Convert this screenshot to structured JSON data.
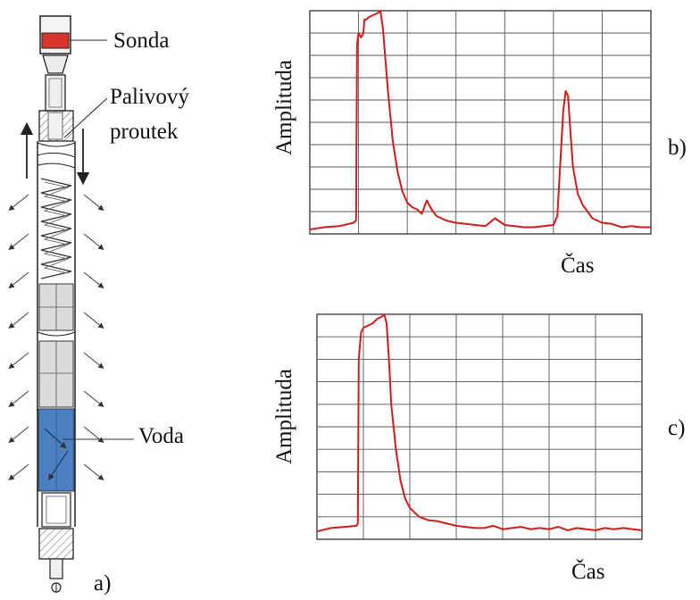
{
  "figure": {
    "panel_a_label": "a)",
    "panel_b_label": "b)",
    "panel_c_label": "c)"
  },
  "rod": {
    "labels": {
      "probe": "Sonda",
      "fuel_rod_line1": "Palivový",
      "fuel_rod_line2": "proutek",
      "water": "Voda"
    },
    "colors": {
      "probe": "#d9342b",
      "water": "#4a7fc0",
      "steel": "#e6e6e6"
    }
  },
  "chart_data": [
    {
      "type": "line",
      "panel": "b)",
      "ylabel": "Amplituda",
      "xlabel": "Čas",
      "grid": true,
      "xlim": [
        0,
        7
      ],
      "ylim": [
        0,
        10
      ],
      "line_color": "#d21c1c",
      "series": [
        {
          "x": [
            0,
            0.3,
            0.6,
            0.9,
            0.95,
            0.97,
            1.0,
            1.05,
            1.1,
            1.12,
            1.15,
            1.2,
            1.3,
            1.4,
            1.45,
            1.5,
            1.6,
            1.7,
            1.8,
            1.9,
            2.0,
            2.1,
            2.2,
            2.3,
            2.4,
            2.5,
            2.6,
            2.8,
            3.0,
            3.2,
            3.4,
            3.6,
            3.8,
            4.0,
            4.2,
            4.4,
            4.6,
            4.8,
            5.0,
            5.08,
            5.15,
            5.2,
            5.25,
            5.3,
            5.35,
            5.4,
            5.5,
            5.6,
            5.7,
            5.8,
            6.0,
            6.2,
            6.4,
            6.6,
            6.8,
            7.0
          ],
          "y": [
            0.2,
            0.3,
            0.35,
            0.5,
            0.6,
            8.5,
            9.0,
            8.8,
            9.0,
            9.6,
            9.6,
            9.7,
            9.8,
            9.9,
            10.0,
            9.2,
            6.5,
            4.2,
            2.8,
            1.9,
            1.4,
            1.2,
            1.1,
            0.9,
            1.5,
            1.1,
            0.8,
            0.6,
            0.5,
            0.45,
            0.4,
            0.35,
            0.7,
            0.4,
            0.35,
            0.3,
            0.3,
            0.35,
            0.4,
            0.8,
            3.5,
            5.5,
            6.4,
            6.2,
            4.5,
            3.0,
            1.8,
            1.3,
            1.0,
            0.7,
            0.5,
            0.45,
            0.3,
            0.35,
            0.3,
            0.3
          ]
        }
      ]
    },
    {
      "type": "line",
      "panel": "c)",
      "ylabel": "Amplituda",
      "xlabel": "Čas",
      "grid": true,
      "xlim": [
        0,
        7
      ],
      "ylim": [
        0,
        10
      ],
      "line_color": "#d21c1c",
      "series": [
        {
          "x": [
            0,
            0.3,
            0.6,
            0.85,
            0.88,
            0.9,
            0.95,
            1.0,
            1.1,
            1.2,
            1.3,
            1.4,
            1.45,
            1.5,
            1.55,
            1.6,
            1.7,
            1.8,
            1.9,
            2.0,
            2.1,
            2.2,
            2.4,
            2.6,
            2.8,
            3.0,
            3.2,
            3.4,
            3.6,
            3.8,
            4.0,
            4.2,
            4.4,
            4.6,
            4.8,
            5.0,
            5.2,
            5.4,
            5.6,
            5.8,
            6.0,
            6.2,
            6.4,
            6.6,
            6.8,
            7.0
          ],
          "y": [
            0.35,
            0.5,
            0.55,
            0.6,
            0.7,
            8.0,
            9.2,
            9.4,
            9.5,
            9.6,
            9.8,
            9.9,
            10.0,
            9.6,
            8.0,
            6.0,
            4.0,
            2.6,
            1.8,
            1.4,
            1.2,
            1.0,
            0.85,
            0.8,
            0.7,
            0.6,
            0.55,
            0.5,
            0.5,
            0.6,
            0.45,
            0.5,
            0.55,
            0.45,
            0.5,
            0.45,
            0.55,
            0.4,
            0.5,
            0.45,
            0.4,
            0.5,
            0.45,
            0.5,
            0.45,
            0.4
          ]
        }
      ]
    }
  ]
}
